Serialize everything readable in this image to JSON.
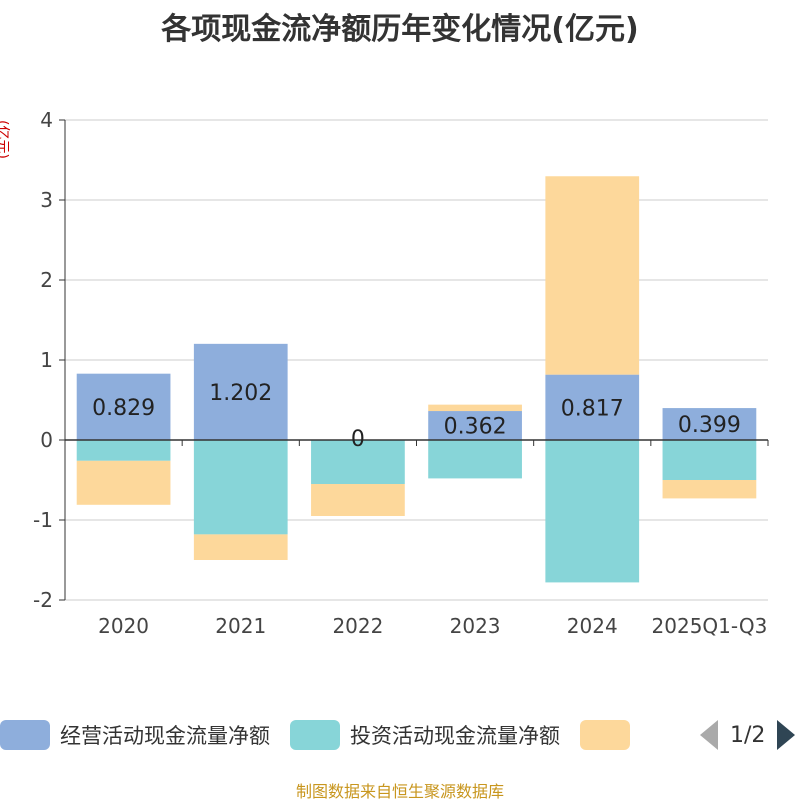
{
  "title": "各项现金流净额历年变化情况(亿元)",
  "unit_label": "(亿元)",
  "source": "制图数据来自恒生聚源数据库",
  "legend": {
    "items": [
      {
        "label": "经营活动现金流量净额",
        "color": "#8eaedc"
      },
      {
        "label": "投资活动现金流量净额",
        "color": "#87d5d8"
      },
      {
        "label": "",
        "color": "#fdd89b"
      }
    ],
    "page_text": "1/2"
  },
  "chart_data": {
    "type": "bar",
    "stacked": true,
    "title": "各项现金流净额历年变化情况(亿元)",
    "ylabel": "(亿元)",
    "categories": [
      "2020",
      "2021",
      "2022",
      "2023",
      "2024",
      "2025Q1-Q3"
    ],
    "ylim": [
      -2,
      4
    ],
    "yticks": [
      -2,
      -1,
      0,
      1,
      2,
      3,
      4
    ],
    "series": [
      {
        "name": "经营活动现金流量净额",
        "color": "#8eaedc",
        "values": [
          0.829,
          1.202,
          0,
          0.362,
          0.817,
          0.399
        ],
        "labels": [
          "0.829",
          "1.202",
          "0",
          "0.362",
          "0.817",
          "0.399"
        ]
      },
      {
        "name": "投资活动现金流量净额",
        "color": "#87d5d8",
        "values": [
          -0.26,
          -1.18,
          -0.55,
          -0.48,
          -1.78,
          -0.5
        ]
      },
      {
        "name": "",
        "color": "#fdd89b",
        "values": [
          -0.55,
          -0.32,
          -0.4,
          0.08,
          2.48,
          -0.23
        ]
      }
    ]
  }
}
